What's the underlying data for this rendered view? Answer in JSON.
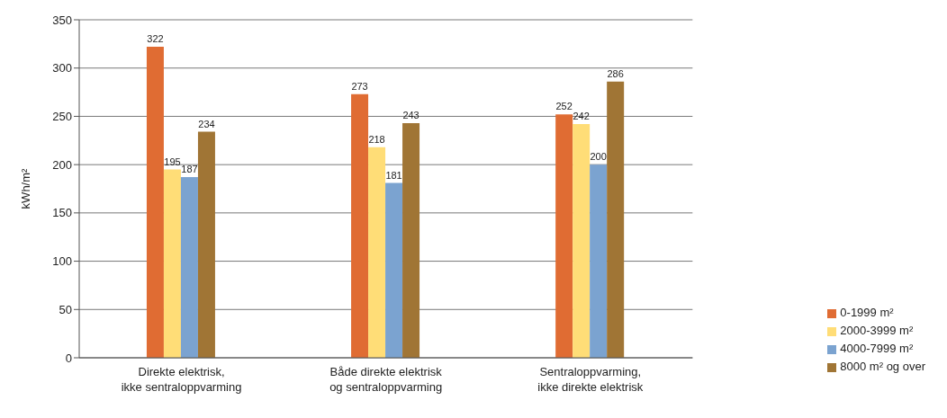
{
  "chart_data": {
    "type": "bar",
    "ylabel": "kWh/m²",
    "categories": [
      "Direkte elektrisk, ikke sentraloppvarming",
      "Både direkte elektrisk og sentraloppvarming",
      "Sentraloppvarming, ikke direkte elektrisk"
    ],
    "series": [
      {
        "name": "0-1999 m²",
        "color": "#e06c33",
        "values": [
          322,
          273,
          252
        ]
      },
      {
        "name": "2000-3999 m²",
        "color": "#ffdd77",
        "values": [
          195,
          218,
          242
        ]
      },
      {
        "name": "4000-7999 m²",
        "color": "#7ba3d0",
        "values": [
          187,
          181,
          200
        ]
      },
      {
        "name": "8000 m² og over",
        "color": "#a07535",
        "values": [
          234,
          243,
          286
        ]
      }
    ],
    "ylim": [
      0,
      350
    ],
    "yticks": [
      0,
      50,
      100,
      150,
      200,
      250,
      300,
      350
    ],
    "grid": "y",
    "legend": "bottom right",
    "data_labels": true
  }
}
